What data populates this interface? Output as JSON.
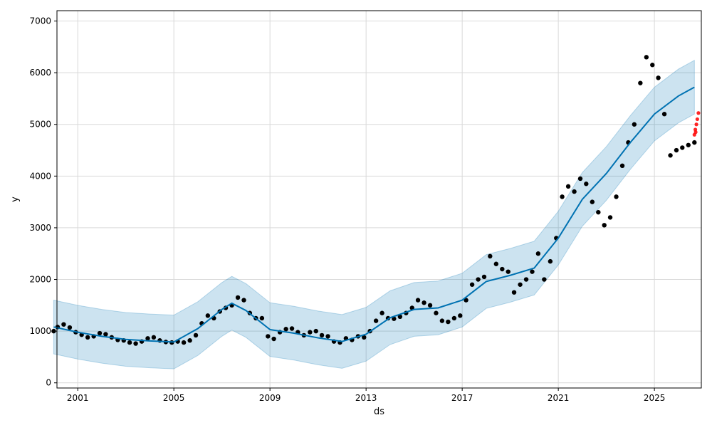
{
  "chart_data": {
    "type": "line",
    "title": "",
    "xlabel": "ds",
    "ylabel": "y",
    "xlim": [
      "2000-02-20",
      "2026-12-15"
    ],
    "ylim": [
      -100,
      7200
    ],
    "grid": true,
    "x_ticks": [
      "2001",
      "2005",
      "2009",
      "2013",
      "2017",
      "2021",
      "2025"
    ],
    "y_ticks": [
      "0",
      "1000",
      "2000",
      "3000",
      "4000",
      "5000",
      "6000",
      "7000"
    ],
    "colors": {
      "actual": "#000000",
      "forecast": "#0072B2",
      "interval": "#0072B2",
      "holdout": "#ff0000",
      "grid": "#d9d9d9"
    },
    "series": [
      {
        "role": "observed",
        "points": [
          [
            "2000-01-01",
            1000
          ],
          [
            "2000-03-01",
            1080
          ],
          [
            "2000-06-01",
            1130
          ],
          [
            "2000-09-01",
            1070
          ],
          [
            "2000-12-01",
            980
          ],
          [
            "2001-03-01",
            930
          ],
          [
            "2001-06-01",
            880
          ],
          [
            "2001-09-01",
            900
          ],
          [
            "2001-12-01",
            960
          ],
          [
            "2002-03-01",
            940
          ],
          [
            "2002-06-01",
            880
          ],
          [
            "2002-09-01",
            830
          ],
          [
            "2002-12-01",
            820
          ],
          [
            "2003-03-01",
            780
          ],
          [
            "2003-06-01",
            760
          ],
          [
            "2003-09-01",
            800
          ],
          [
            "2003-12-01",
            860
          ],
          [
            "2004-03-01",
            880
          ],
          [
            "2004-06-01",
            820
          ],
          [
            "2004-09-01",
            790
          ],
          [
            "2004-12-01",
            780
          ],
          [
            "2005-03-01",
            800
          ],
          [
            "2005-06-01",
            780
          ],
          [
            "2005-09-01",
            820
          ],
          [
            "2005-12-01",
            920
          ],
          [
            "2006-03-01",
            1150
          ],
          [
            "2006-06-01",
            1300
          ],
          [
            "2006-09-01",
            1250
          ],
          [
            "2006-12-01",
            1380
          ],
          [
            "2007-03-01",
            1450
          ],
          [
            "2007-06-01",
            1500
          ],
          [
            "2007-09-01",
            1650
          ],
          [
            "2007-12-01",
            1600
          ],
          [
            "2008-03-01",
            1350
          ],
          [
            "2008-06-01",
            1250
          ],
          [
            "2008-09-01",
            1250
          ],
          [
            "2008-12-01",
            900
          ],
          [
            "2009-03-01",
            850
          ],
          [
            "2009-06-01",
            980
          ],
          [
            "2009-09-01",
            1040
          ],
          [
            "2009-12-01",
            1050
          ],
          [
            "2010-03-01",
            980
          ],
          [
            "2010-06-01",
            920
          ],
          [
            "2010-09-01",
            980
          ],
          [
            "2010-12-01",
            1000
          ],
          [
            "2011-03-01",
            920
          ],
          [
            "2011-06-01",
            900
          ],
          [
            "2011-09-01",
            800
          ],
          [
            "2011-12-01",
            780
          ],
          [
            "2012-03-01",
            860
          ],
          [
            "2012-06-01",
            830
          ],
          [
            "2012-09-01",
            900
          ],
          [
            "2012-12-01",
            880
          ],
          [
            "2013-03-01",
            1000
          ],
          [
            "2013-06-01",
            1200
          ],
          [
            "2013-09-01",
            1350
          ],
          [
            "2013-12-01",
            1250
          ],
          [
            "2014-03-01",
            1240
          ],
          [
            "2014-06-01",
            1280
          ],
          [
            "2014-09-01",
            1350
          ],
          [
            "2014-12-01",
            1450
          ],
          [
            "2015-03-01",
            1600
          ],
          [
            "2015-06-01",
            1550
          ],
          [
            "2015-09-01",
            1500
          ],
          [
            "2015-12-01",
            1350
          ],
          [
            "2016-03-01",
            1200
          ],
          [
            "2016-06-01",
            1180
          ],
          [
            "2016-09-01",
            1250
          ],
          [
            "2016-12-01",
            1300
          ],
          [
            "2017-03-01",
            1600
          ],
          [
            "2017-06-01",
            1900
          ],
          [
            "2017-09-01",
            2000
          ],
          [
            "2017-12-01",
            2050
          ],
          [
            "2018-03-01",
            2450
          ],
          [
            "2018-06-01",
            2300
          ],
          [
            "2018-09-01",
            2200
          ],
          [
            "2018-12-01",
            2150
          ],
          [
            "2019-03-01",
            1750
          ],
          [
            "2019-06-01",
            1900
          ],
          [
            "2019-09-01",
            2000
          ],
          [
            "2019-12-01",
            2150
          ],
          [
            "2020-03-01",
            2500
          ],
          [
            "2020-06-01",
            2000
          ],
          [
            "2020-09-01",
            2350
          ],
          [
            "2020-12-01",
            2800
          ],
          [
            "2021-03-01",
            3600
          ],
          [
            "2021-06-01",
            3800
          ],
          [
            "2021-09-01",
            3700
          ],
          [
            "2021-12-01",
            3950
          ],
          [
            "2022-03-01",
            3850
          ],
          [
            "2022-06-01",
            3500
          ],
          [
            "2022-09-01",
            3300
          ],
          [
            "2022-12-01",
            3050
          ],
          [
            "2023-03-01",
            3200
          ],
          [
            "2023-06-01",
            3600
          ],
          [
            "2023-09-01",
            4200
          ],
          [
            "2023-12-01",
            4650
          ],
          [
            "2024-03-01",
            5000
          ],
          [
            "2024-06-01",
            5800
          ],
          [
            "2024-09-01",
            6300
          ],
          [
            "2024-12-01",
            6150
          ],
          [
            "2025-03-01",
            5900
          ],
          [
            "2025-06-01",
            5200
          ],
          [
            "2025-09-01",
            4400
          ],
          [
            "2025-12-01",
            4500
          ],
          [
            "2026-03-01",
            4550
          ],
          [
            "2026-06-01",
            4600
          ],
          [
            "2026-09-01",
            4650
          ]
        ]
      },
      {
        "role": "forecast",
        "points": [
          [
            "2000-01-01",
            1080
          ],
          [
            "2001-01-01",
            980
          ],
          [
            "2002-01-01",
            900
          ],
          [
            "2003-01-01",
            840
          ],
          [
            "2004-01-01",
            810
          ],
          [
            "2005-01-01",
            790
          ],
          [
            "2006-01-01",
            1050
          ],
          [
            "2007-01-01",
            1420
          ],
          [
            "2007-06-01",
            1540
          ],
          [
            "2008-01-01",
            1400
          ],
          [
            "2009-01-01",
            1030
          ],
          [
            "2010-01-01",
            960
          ],
          [
            "2011-01-01",
            870
          ],
          [
            "2012-01-01",
            800
          ],
          [
            "2013-01-01",
            940
          ],
          [
            "2014-01-01",
            1260
          ],
          [
            "2015-01-01",
            1420
          ],
          [
            "2016-01-01",
            1450
          ],
          [
            "2017-01-01",
            1600
          ],
          [
            "2018-01-01",
            1960
          ],
          [
            "2019-01-01",
            2080
          ],
          [
            "2020-01-01",
            2220
          ],
          [
            "2021-01-01",
            2800
          ],
          [
            "2022-01-01",
            3550
          ],
          [
            "2023-01-01",
            4050
          ],
          [
            "2024-01-01",
            4650
          ],
          [
            "2025-01-01",
            5200
          ],
          [
            "2026-01-01",
            5550
          ],
          [
            "2026-09-01",
            5720
          ]
        ]
      },
      {
        "role": "holdout",
        "points": [
          [
            "2026-09-01",
            4800
          ],
          [
            "2026-09-15",
            4900
          ],
          [
            "2026-10-01",
            5000
          ],
          [
            "2026-10-15",
            5100
          ],
          [
            "2026-11-01",
            5220
          ],
          [
            "2026-09-20",
            4850
          ]
        ]
      }
    ],
    "interval_halfwidth": 520
  }
}
